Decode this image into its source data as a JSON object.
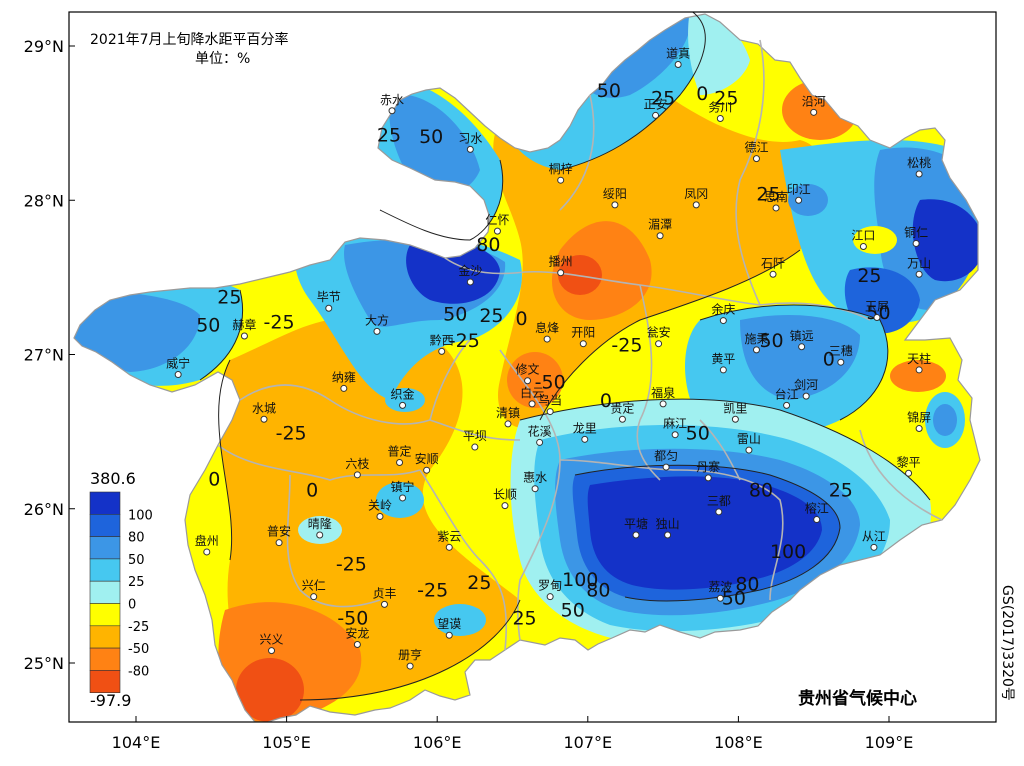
{
  "map": {
    "title": "2021年7月上旬降水距平百分率",
    "unit": "单位：%",
    "credit": "贵州省气候中心",
    "approval": "GS(2017)3320号",
    "lon_ticks": [
      {
        "value": 104,
        "label": "104°E"
      },
      {
        "value": 105,
        "label": "105°E"
      },
      {
        "value": 106,
        "label": "106°E"
      },
      {
        "value": 107,
        "label": "107°E"
      },
      {
        "value": 108,
        "label": "108°E"
      },
      {
        "value": 109,
        "label": "109°E"
      }
    ],
    "lat_ticks": [
      {
        "value": 29,
        "label": "29°N"
      },
      {
        "value": 28,
        "label": "28°N"
      },
      {
        "value": 27,
        "label": "27°N"
      },
      {
        "value": 26,
        "label": "26°N"
      },
      {
        "value": 25,
        "label": "25°N"
      }
    ]
  },
  "legend": {
    "max_label": "380.6",
    "min_label": "-97.9",
    "classes": [
      {
        "label": "100",
        "color": "#1432c8"
      },
      {
        "label": "80",
        "color": "#1e64dc"
      },
      {
        "label": "50",
        "color": "#3c96e6"
      },
      {
        "label": "25",
        "color": "#46c8f0"
      },
      {
        "label": "0",
        "color": "#a0f0f0"
      },
      {
        "label": "-25",
        "color": "#ffff00"
      },
      {
        "label": "-50",
        "color": "#ffb400"
      },
      {
        "label": "-80",
        "color": "#ff8214"
      },
      {
        "label": "",
        "color": "#f05014"
      }
    ]
  },
  "stations": [
    {
      "name": "道真",
      "lon": 107.6,
      "lat": 28.88
    },
    {
      "name": "正安",
      "lon": 107.45,
      "lat": 28.55
    },
    {
      "name": "务川",
      "lon": 107.88,
      "lat": 28.53
    },
    {
      "name": "沿河",
      "lon": 108.5,
      "lat": 28.57
    },
    {
      "name": "赤水",
      "lon": 105.7,
      "lat": 28.58
    },
    {
      "name": "习水",
      "lon": 106.22,
      "lat": 28.33
    },
    {
      "name": "桐梓",
      "lon": 106.82,
      "lat": 28.13
    },
    {
      "name": "德江",
      "lon": 108.12,
      "lat": 28.27
    },
    {
      "name": "松桃",
      "lon": 109.2,
      "lat": 28.17
    },
    {
      "name": "绥阳",
      "lon": 107.18,
      "lat": 27.97
    },
    {
      "name": "凤冈",
      "lon": 107.72,
      "lat": 27.97
    },
    {
      "name": "印江",
      "lon": 108.4,
      "lat": 28.0
    },
    {
      "name": "思南",
      "lon": 108.25,
      "lat": 27.95
    },
    {
      "name": "仁怀",
      "lon": 106.4,
      "lat": 27.8
    },
    {
      "name": "湄潭",
      "lon": 107.48,
      "lat": 27.77
    },
    {
      "name": "江口",
      "lon": 108.83,
      "lat": 27.7
    },
    {
      "name": "铜仁",
      "lon": 109.18,
      "lat": 27.72
    },
    {
      "name": "石阡",
      "lon": 108.23,
      "lat": 27.52
    },
    {
      "name": "万山",
      "lon": 109.2,
      "lat": 27.52
    },
    {
      "name": "播州",
      "lon": 106.82,
      "lat": 27.53
    },
    {
      "name": "金沙",
      "lon": 106.22,
      "lat": 27.47
    },
    {
      "name": "毕节",
      "lon": 105.28,
      "lat": 27.3
    },
    {
      "name": "余庆",
      "lon": 107.9,
      "lat": 27.22
    },
    {
      "name": "玉屏",
      "lon": 108.92,
      "lat": 27.24
    },
    {
      "name": "赫章",
      "lon": 104.72,
      "lat": 27.12
    },
    {
      "name": "大方",
      "lon": 105.6,
      "lat": 27.15
    },
    {
      "name": "息烽",
      "lon": 106.73,
      "lat": 27.1
    },
    {
      "name": "开阳",
      "lon": 106.97,
      "lat": 27.07
    },
    {
      "name": "瓮安",
      "lon": 107.47,
      "lat": 27.07
    },
    {
      "name": "施秉",
      "lon": 108.12,
      "lat": 27.03
    },
    {
      "name": "镇远",
      "lon": 108.42,
      "lat": 27.05
    },
    {
      "name": "三穗",
      "lon": 108.68,
      "lat": 26.95
    },
    {
      "name": "黔西",
      "lon": 106.03,
      "lat": 27.02
    },
    {
      "name": "威宁",
      "lon": 104.28,
      "lat": 26.87
    },
    {
      "name": "纳雍",
      "lon": 105.38,
      "lat": 26.78
    },
    {
      "name": "修文",
      "lon": 106.6,
      "lat": 26.83
    },
    {
      "name": "黄平",
      "lon": 107.9,
      "lat": 26.9
    },
    {
      "name": "天柱",
      "lon": 109.2,
      "lat": 26.9
    },
    {
      "name": "织金",
      "lon": 105.77,
      "lat": 26.67
    },
    {
      "name": "白云",
      "lon": 106.63,
      "lat": 26.68
    },
    {
      "name": "乌当",
      "lon": 106.75,
      "lat": 26.63
    },
    {
      "name": "福泉",
      "lon": 107.5,
      "lat": 26.68
    },
    {
      "name": "台江",
      "lon": 108.32,
      "lat": 26.67
    },
    {
      "name": "剑河",
      "lon": 108.45,
      "lat": 26.73
    },
    {
      "name": "凯里",
      "lon": 107.98,
      "lat": 26.58
    },
    {
      "name": "水城",
      "lon": 104.85,
      "lat": 26.58
    },
    {
      "name": "清镇",
      "lon": 106.47,
      "lat": 26.55
    },
    {
      "name": "贵定",
      "lon": 107.23,
      "lat": 26.58
    },
    {
      "name": "麻江",
      "lon": 107.58,
      "lat": 26.48
    },
    {
      "name": "锦屏",
      "lon": 109.2,
      "lat": 26.52
    },
    {
      "name": "花溪",
      "lon": 106.68,
      "lat": 26.43
    },
    {
      "name": "龙里",
      "lon": 106.98,
      "lat": 26.45
    },
    {
      "name": "雷山",
      "lon": 108.07,
      "lat": 26.38
    },
    {
      "name": "平坝",
      "lon": 106.25,
      "lat": 26.4
    },
    {
      "name": "都匀",
      "lon": 107.52,
      "lat": 26.27
    },
    {
      "name": "普定",
      "lon": 105.75,
      "lat": 26.3
    },
    {
      "name": "安顺",
      "lon": 105.93,
      "lat": 26.25
    },
    {
      "name": "黎平",
      "lon": 109.13,
      "lat": 26.23
    },
    {
      "name": "六枝",
      "lon": 105.47,
      "lat": 26.22
    },
    {
      "name": "惠水",
      "lon": 106.65,
      "lat": 26.13
    },
    {
      "name": "丹寨",
      "lon": 107.8,
      "lat": 26.2
    },
    {
      "name": "镇宁",
      "lon": 105.77,
      "lat": 26.07
    },
    {
      "name": "长顺",
      "lon": 106.45,
      "lat": 26.02
    },
    {
      "name": "关岭",
      "lon": 105.62,
      "lat": 25.95
    },
    {
      "name": "榕江",
      "lon": 108.52,
      "lat": 25.93
    },
    {
      "name": "盘州",
      "lon": 104.47,
      "lat": 25.72
    },
    {
      "name": "普安",
      "lon": 104.95,
      "lat": 25.78
    },
    {
      "name": "晴隆",
      "lon": 105.22,
      "lat": 25.83
    },
    {
      "name": "紫云",
      "lon": 106.08,
      "lat": 25.75
    },
    {
      "name": "平塘",
      "lon": 107.32,
      "lat": 25.83
    },
    {
      "name": "独山",
      "lon": 107.53,
      "lat": 25.83
    },
    {
      "name": "三都",
      "lon": 107.87,
      "lat": 25.98
    },
    {
      "name": "从江",
      "lon": 108.9,
      "lat": 25.75
    },
    {
      "name": "兴仁",
      "lon": 105.18,
      "lat": 25.43
    },
    {
      "name": "贞丰",
      "lon": 105.65,
      "lat": 25.38
    },
    {
      "name": "罗甸",
      "lon": 106.75,
      "lat": 25.43
    },
    {
      "name": "荔波",
      "lon": 107.88,
      "lat": 25.42
    },
    {
      "name": "望谟",
      "lon": 106.08,
      "lat": 25.18
    },
    {
      "name": "兴义",
      "lon": 104.9,
      "lat": 25.08
    },
    {
      "name": "安龙",
      "lon": 105.47,
      "lat": 25.12
    },
    {
      "name": "册亨",
      "lon": 105.82,
      "lat": 24.98
    }
  ],
  "contour_labels": [
    {
      "text": "50",
      "lon": 107.14,
      "lat": 28.67
    },
    {
      "text": "25",
      "lon": 107.5,
      "lat": 28.62
    },
    {
      "text": "0",
      "lon": 107.76,
      "lat": 28.65
    },
    {
      "text": "25",
      "lon": 107.92,
      "lat": 28.62
    },
    {
      "text": "25",
      "lon": 105.68,
      "lat": 28.38
    },
    {
      "text": "50",
      "lon": 105.96,
      "lat": 28.37
    },
    {
      "text": "25",
      "lon": 108.2,
      "lat": 28.0
    },
    {
      "text": "80",
      "lon": 106.34,
      "lat": 27.67
    },
    {
      "text": "25",
      "lon": 104.62,
      "lat": 27.33
    },
    {
      "text": "50",
      "lon": 104.48,
      "lat": 27.15
    },
    {
      "text": "-25",
      "lon": 104.95,
      "lat": 27.17
    },
    {
      "text": "50",
      "lon": 106.12,
      "lat": 27.22
    },
    {
      "text": "25",
      "lon": 106.36,
      "lat": 27.21
    },
    {
      "text": "0",
      "lon": 106.56,
      "lat": 27.19
    },
    {
      "text": "-25",
      "lon": 106.18,
      "lat": 27.05
    },
    {
      "text": "-50",
      "lon": 106.75,
      "lat": 26.78
    },
    {
      "text": "-25",
      "lon": 107.26,
      "lat": 27.02
    },
    {
      "text": "0",
      "lon": 107.12,
      "lat": 26.66
    },
    {
      "text": "50",
      "lon": 108.22,
      "lat": 27.05
    },
    {
      "text": "25",
      "lon": 108.87,
      "lat": 27.47
    },
    {
      "text": "50",
      "lon": 108.93,
      "lat": 27.23
    },
    {
      "text": "0",
      "lon": 108.6,
      "lat": 26.93
    },
    {
      "text": "-25",
      "lon": 105.03,
      "lat": 26.45
    },
    {
      "text": "50",
      "lon": 107.73,
      "lat": 26.45
    },
    {
      "text": "0",
      "lon": 104.52,
      "lat": 26.15
    },
    {
      "text": "0",
      "lon": 105.17,
      "lat": 26.08
    },
    {
      "text": "25",
      "lon": 106.28,
      "lat": 25.48
    },
    {
      "text": "-25",
      "lon": 105.43,
      "lat": 25.6
    },
    {
      "text": "-25",
      "lon": 105.97,
      "lat": 25.43
    },
    {
      "text": "-50",
      "lon": 105.44,
      "lat": 25.25
    },
    {
      "text": "80",
      "lon": 108.15,
      "lat": 26.08
    },
    {
      "text": "25",
      "lon": 108.68,
      "lat": 26.08
    },
    {
      "text": "100",
      "lon": 108.33,
      "lat": 25.68
    },
    {
      "text": "80",
      "lon": 108.06,
      "lat": 25.47
    },
    {
      "text": "50",
      "lon": 107.97,
      "lat": 25.38
    },
    {
      "text": "100",
      "lon": 106.95,
      "lat": 25.5
    },
    {
      "text": "80",
      "lon": 107.07,
      "lat": 25.43
    },
    {
      "text": "50",
      "lon": 106.9,
      "lat": 25.3
    },
    {
      "text": "25",
      "lon": 106.58,
      "lat": 25.25
    }
  ]
}
